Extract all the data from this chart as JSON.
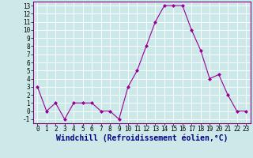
{
  "x": [
    0,
    1,
    2,
    3,
    4,
    5,
    6,
    7,
    8,
    9,
    10,
    11,
    12,
    13,
    14,
    15,
    16,
    17,
    18,
    19,
    20,
    21,
    22,
    23
  ],
  "y": [
    3,
    0,
    1,
    -1,
    1,
    1,
    1,
    0,
    0,
    -1,
    3,
    5,
    8,
    11,
    13,
    13,
    13,
    10,
    7.5,
    4,
    4.5,
    2,
    0,
    0
  ],
  "line_color": "#990099",
  "marker_color": "#990099",
  "bg_color": "#cce8e8",
  "grid_color": "#ffffff",
  "xlabel": "Windchill (Refroidissement éolien,°C)",
  "xlabel_color": "#000080",
  "xlim": [
    -0.5,
    23.5
  ],
  "ylim": [
    -1.5,
    13.5
  ],
  "yticks": [
    -1,
    0,
    1,
    2,
    3,
    4,
    5,
    6,
    7,
    8,
    9,
    10,
    11,
    12,
    13
  ],
  "xticks": [
    0,
    1,
    2,
    3,
    4,
    5,
    6,
    7,
    8,
    9,
    10,
    11,
    12,
    13,
    14,
    15,
    16,
    17,
    18,
    19,
    20,
    21,
    22,
    23
  ],
  "tick_label_size": 5.5,
  "xlabel_fontsize": 7.0,
  "spine_color": "#800080"
}
